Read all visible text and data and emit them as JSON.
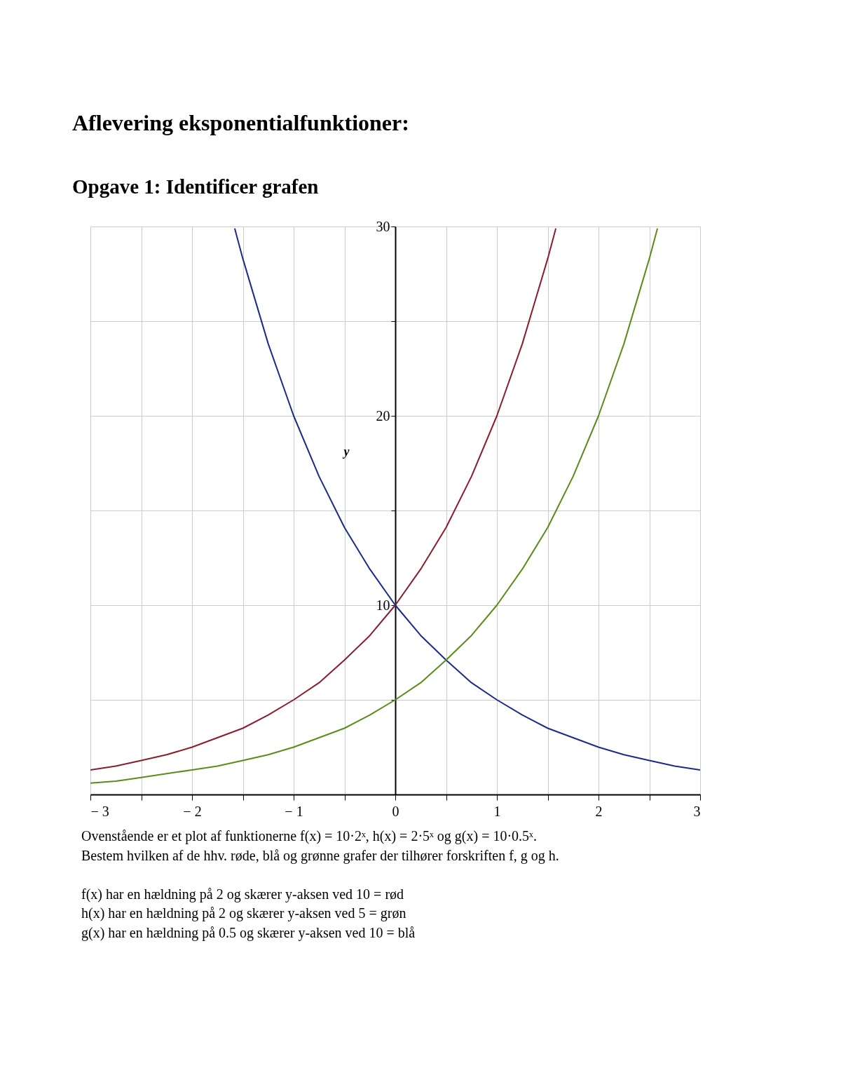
{
  "chart_data": {
    "type": "line",
    "title": "Aflevering eksponentialfunktioner:",
    "subtitle": "Opgave 1: Identificer grafen",
    "ylabel": "y",
    "xlim": [
      -3,
      3
    ],
    "ylim": [
      0,
      30
    ],
    "xticks": [
      {
        "value": -3,
        "label": "− 3"
      },
      {
        "value": -2.5,
        "label": null
      },
      {
        "value": -2,
        "label": "− 2"
      },
      {
        "value": -1.5,
        "label": null
      },
      {
        "value": -1,
        "label": "− 1"
      },
      {
        "value": -0.5,
        "label": null
      },
      0,
      {
        "value": 0.5,
        "label": null
      },
      1,
      {
        "value": 1.5,
        "label": null
      },
      2,
      {
        "value": 2.5,
        "label": null
      },
      3
    ],
    "yticks": [
      {
        "value": 5,
        "label": null
      },
      10,
      {
        "value": 15,
        "label": null
      },
      20,
      {
        "value": 25,
        "label": null
      },
      30
    ],
    "grid": true,
    "marker": "none",
    "line_style": "solid",
    "series": [
      {
        "color": "#8c1c2c",
        "x": [
          -3,
          -2.75,
          -2.5,
          -2.25,
          -2,
          -1.75,
          -1.5,
          -1.25,
          -1,
          -0.75,
          -0.5,
          -0.25,
          0,
          0.25,
          0.5,
          0.75,
          1,
          1.25,
          1.5,
          1.58
        ],
        "values": [
          1.3,
          1.5,
          1.8,
          2.1,
          2.5,
          3.0,
          3.5,
          4.2,
          5,
          5.9,
          7.1,
          8.4,
          10,
          11.9,
          14.1,
          16.8,
          20,
          23.8,
          28.3,
          29.9
        ]
      },
      {
        "color": "#1c2a8c",
        "x": [
          -1.58,
          -1.5,
          -1.25,
          -1,
          -0.75,
          -0.5,
          -0.25,
          0,
          0.25,
          0.5,
          0.75,
          1,
          1.25,
          1.5,
          1.75,
          2,
          2.25,
          2.5,
          2.75,
          3
        ],
        "values": [
          29.9,
          28.3,
          23.8,
          20,
          16.8,
          14.1,
          11.9,
          10,
          8.4,
          7.1,
          5.9,
          5,
          4.2,
          3.5,
          3.0,
          2.5,
          2.1,
          1.8,
          1.5,
          1.3
        ]
      },
      {
        "color": "#5a8c1a",
        "x": [
          -3,
          -2.75,
          -2.5,
          -2.25,
          -2,
          -1.75,
          -1.5,
          -1.25,
          -1,
          -0.75,
          -0.5,
          -0.25,
          0,
          0.25,
          0.5,
          0.75,
          1,
          1.25,
          1.5,
          1.75,
          2,
          2.25,
          2.5,
          2.58
        ],
        "values": [
          0.6,
          0.7,
          0.9,
          1.1,
          1.3,
          1.5,
          1.8,
          2.1,
          2.5,
          3.0,
          3.5,
          4.2,
          5,
          5.9,
          7.1,
          8.4,
          10,
          11.9,
          14.1,
          16.8,
          20,
          23.8,
          28.3,
          29.9
        ]
      }
    ],
    "annotations": [
      "Ovenstående er et plot af funktionerne f(x) = 10·2ˣ, h(x) = 2·5ˣ og g(x) = 10·0.5ˣ.\nBestem hvilken af de hhv. røde, blå og grønne grafer der tilhører forskriften f, g og h.",
      "f(x)  har en hældning på 2 og skærer y-aksen ved 10 = rød\nh(x) har en hældning på 2 og skærer y-aksen ved 5 = grøn\ng(x) har en hældning på 0.5 og skærer y-aksen ved 10 = blå"
    ]
  }
}
